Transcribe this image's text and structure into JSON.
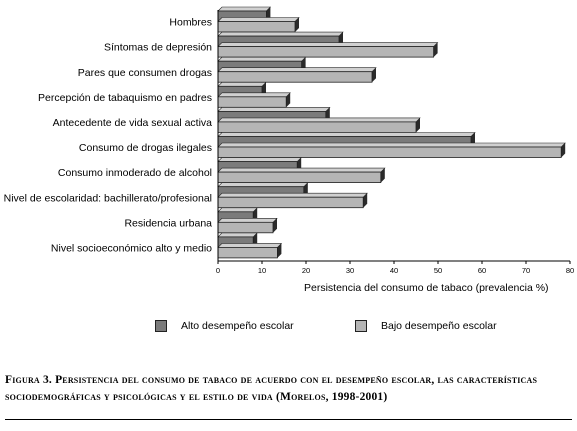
{
  "chart_data": {
    "type": "bar",
    "orientation": "horizontal",
    "categories": [
      "Hombres",
      "Síntomas de depresión",
      "Pares que consumen drogas",
      "Percepción de tabaquismo en padres",
      "Antecedente de vida sexual activa",
      "Consumo de drogas ilegales",
      "Consumo inmoderado de alcohol",
      "Nivel de escolaridad: bachillerato/profesional",
      "Residencia urbana",
      "Nivel socioeconómico alto y medio"
    ],
    "series": [
      {
        "name": "Alto desempeño escolar",
        "color": "#7b7b7b",
        "values": [
          11,
          27.5,
          19,
          10,
          24.5,
          57.5,
          18,
          19.5,
          8,
          8
        ]
      },
      {
        "name": "Bajo desempeño escolar",
        "color": "#b5b5b5",
        "values": [
          17.5,
          49,
          35,
          15.5,
          45,
          78,
          37,
          33,
          12.5,
          13.5
        ]
      }
    ],
    "xlabel": "Persistencia del consumo de tabaco (prevalencia %)",
    "xlim": [
      0,
      80
    ],
    "xticks": [
      "0",
      "10",
      "20",
      "30",
      "40",
      "50",
      "60",
      "70",
      "80"
    ],
    "grid": false,
    "legend_position": "bottom",
    "effect": "3d-shadow"
  },
  "caption": {
    "text": "Figura 3. Persistencia del consumo de tabaco de acuerdo con el desempeño escolar, las características sociodemográficas y psicológicas y el estilo de vida (Morelos, 1998-2001)"
  }
}
